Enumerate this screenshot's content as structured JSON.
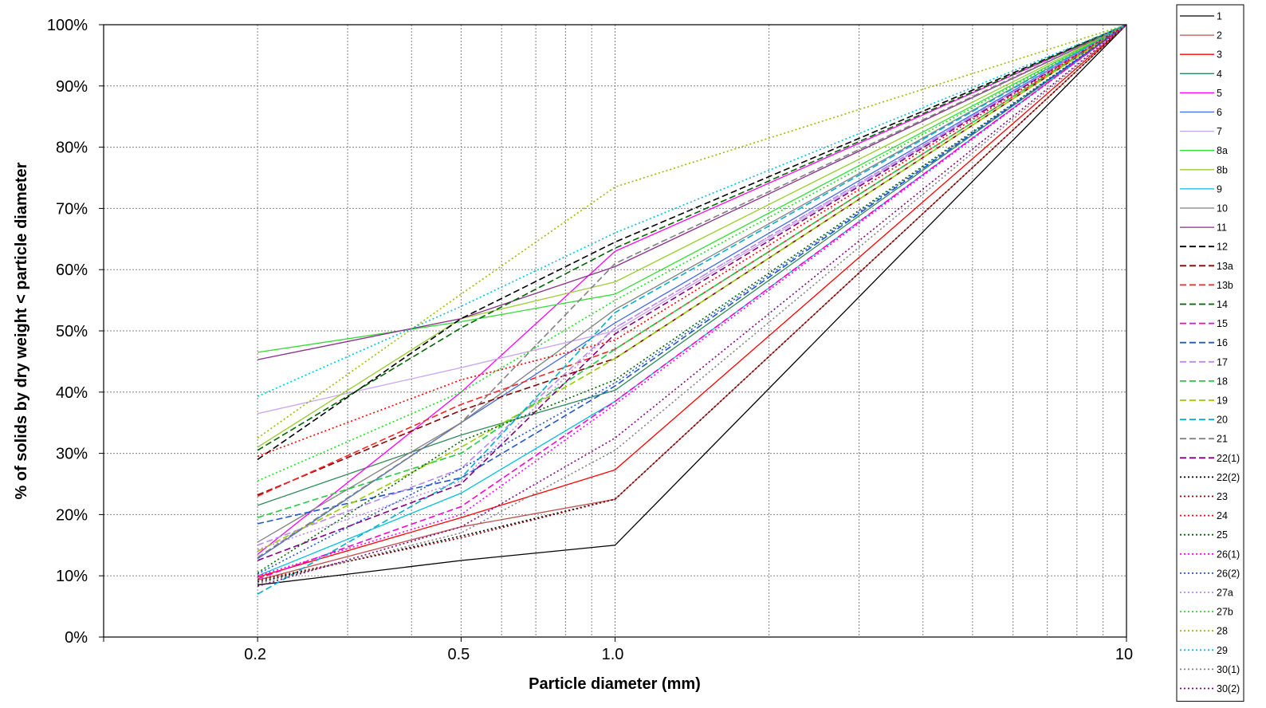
{
  "chart_data": {
    "type": "line",
    "title": "",
    "xlabel": "Particle diameter (mm)",
    "ylabel": "% of solids by dry weight < particle diameter",
    "x_scale": "log",
    "xlim": [
      0.1,
      10
    ],
    "ylim": [
      0,
      100
    ],
    "x_tick_labels": [
      "0.2",
      "0.5",
      "1.0",
      "10"
    ],
    "x_tick_values": [
      0.2,
      0.5,
      1.0,
      10
    ],
    "y_tick_values": [
      0,
      10,
      20,
      30,
      40,
      50,
      60,
      70,
      80,
      90,
      100
    ],
    "y_tick_labels": [
      "0%",
      "10%",
      "20%",
      "30%",
      "40%",
      "50%",
      "60%",
      "70%",
      "80%",
      "90%",
      "100%"
    ],
    "grid": true,
    "legend_position": "right",
    "x": [
      0.2,
      0.5,
      1.0,
      10
    ],
    "series": [
      {
        "name": "1",
        "values": [
          8.5,
          12.5,
          15,
          100
        ],
        "color": "#000000",
        "dash": "solid"
      },
      {
        "name": "2",
        "values": [
          9.3,
          18,
          22.5,
          100
        ],
        "color": "#c0504d",
        "dash": "solid"
      },
      {
        "name": "3",
        "values": [
          9.8,
          19.5,
          27.3,
          100
        ],
        "color": "#ff0000",
        "dash": "solid"
      },
      {
        "name": "4",
        "values": [
          21.5,
          33,
          40.3,
          100
        ],
        "color": "#2e8b57",
        "dash": "solid"
      },
      {
        "name": "5",
        "values": [
          13.5,
          40,
          63,
          100
        ],
        "color": "#ff00ff",
        "dash": "solid"
      },
      {
        "name": "6",
        "values": [
          12.8,
          35,
          51.3,
          100
        ],
        "color": "#4169e1",
        "dash": "solid"
      },
      {
        "name": "7",
        "values": [
          36.5,
          44,
          50,
          100
        ],
        "color": "#c8a2f0",
        "dash": "solid"
      },
      {
        "name": "8a",
        "values": [
          46.5,
          51.5,
          56,
          100
        ],
        "color": "#33dd33",
        "dash": "solid"
      },
      {
        "name": "8b",
        "values": [
          31,
          52,
          58,
          100
        ],
        "color": "#99cc33",
        "dash": "solid"
      },
      {
        "name": "9",
        "values": [
          10,
          23.5,
          38.5,
          100
        ],
        "color": "#00bfdf",
        "dash": "solid"
      },
      {
        "name": "10",
        "values": [
          15.5,
          35,
          53.5,
          100
        ],
        "color": "#808080",
        "dash": "solid"
      },
      {
        "name": "11",
        "values": [
          45.3,
          52,
          60.5,
          100
        ],
        "color": "#8b2e8b",
        "dash": "solid"
      },
      {
        "name": "12",
        "values": [
          29,
          52,
          64.5,
          100
        ],
        "color": "#000000",
        "dash": "dashed"
      },
      {
        "name": "13a",
        "values": [
          23.2,
          37,
          45.5,
          100
        ],
        "color": "#8b0000",
        "dash": "dashed"
      },
      {
        "name": "13b",
        "values": [
          23,
          38,
          47,
          100
        ],
        "color": "#ff2222",
        "dash": "dashed"
      },
      {
        "name": "14",
        "values": [
          30.5,
          50.5,
          63.5,
          100
        ],
        "color": "#006400",
        "dash": "dashed"
      },
      {
        "name": "15",
        "values": [
          9.5,
          21.3,
          38.5,
          100
        ],
        "color": "#ff00cc",
        "dash": "dashed"
      },
      {
        "name": "16",
        "values": [
          18.5,
          26,
          41,
          100
        ],
        "color": "#2255cc",
        "dash": "dashed"
      },
      {
        "name": "17",
        "values": [
          15,
          27.5,
          50.5,
          100
        ],
        "color": "#bb88ee",
        "dash": "dashed"
      },
      {
        "name": "18",
        "values": [
          19.5,
          30,
          47,
          100
        ],
        "color": "#22cc44",
        "dash": "dashed"
      },
      {
        "name": "19",
        "values": [
          14,
          31,
          45.5,
          100
        ],
        "color": "#99cc00",
        "dash": "dashed"
      },
      {
        "name": "20",
        "values": [
          7,
          26,
          53,
          100
        ],
        "color": "#00b0d0",
        "dash": "dashed"
      },
      {
        "name": "21",
        "values": [
          13,
          35,
          61,
          100
        ],
        "color": "#808080",
        "dash": "dashed"
      },
      {
        "name": "22(1)",
        "values": [
          12.5,
          25,
          49.5,
          100
        ],
        "color": "#800080",
        "dash": "dashed"
      },
      {
        "name": "22(2)",
        "values": [
          9,
          16.5,
          22.5,
          100
        ],
        "color": "#000000",
        "dash": "dotted"
      },
      {
        "name": "23",
        "values": [
          9.3,
          16.2,
          22.5,
          100
        ],
        "color": "#8b0000",
        "dash": "dotted"
      },
      {
        "name": "24",
        "values": [
          29.5,
          42,
          48.5,
          100
        ],
        "color": "#ff0000",
        "dash": "dotted"
      },
      {
        "name": "25",
        "values": [
          10.5,
          32,
          42,
          100
        ],
        "color": "#006400",
        "dash": "dotted"
      },
      {
        "name": "26(1)",
        "values": [
          10,
          20,
          38,
          100
        ],
        "color": "#ff00ff",
        "dash": "dotted"
      },
      {
        "name": "26(2)",
        "values": [
          10.3,
          27.5,
          41.5,
          100
        ],
        "color": "#2255cc",
        "dash": "dotted"
      },
      {
        "name": "27a",
        "values": [
          14.3,
          25.5,
          50.5,
          100
        ],
        "color": "#bb88ee",
        "dash": "dotted"
      },
      {
        "name": "27b",
        "values": [
          25.5,
          40,
          55,
          100
        ],
        "color": "#22dd22",
        "dash": "dotted"
      },
      {
        "name": "28",
        "values": [
          32.5,
          56,
          73.5,
          100
        ],
        "color": "#99bb00",
        "dash": "dotted"
      },
      {
        "name": "29",
        "values": [
          39.3,
          54,
          66,
          100
        ],
        "color": "#00c0e0",
        "dash": "dotted"
      },
      {
        "name": "30(1)",
        "values": [
          8.7,
          17,
          30.5,
          100
        ],
        "color": "#808080",
        "dash": "dotted"
      },
      {
        "name": "30(2)",
        "values": [
          8.3,
          18,
          32.5,
          100
        ],
        "color": "#800080",
        "dash": "dotted"
      }
    ]
  }
}
